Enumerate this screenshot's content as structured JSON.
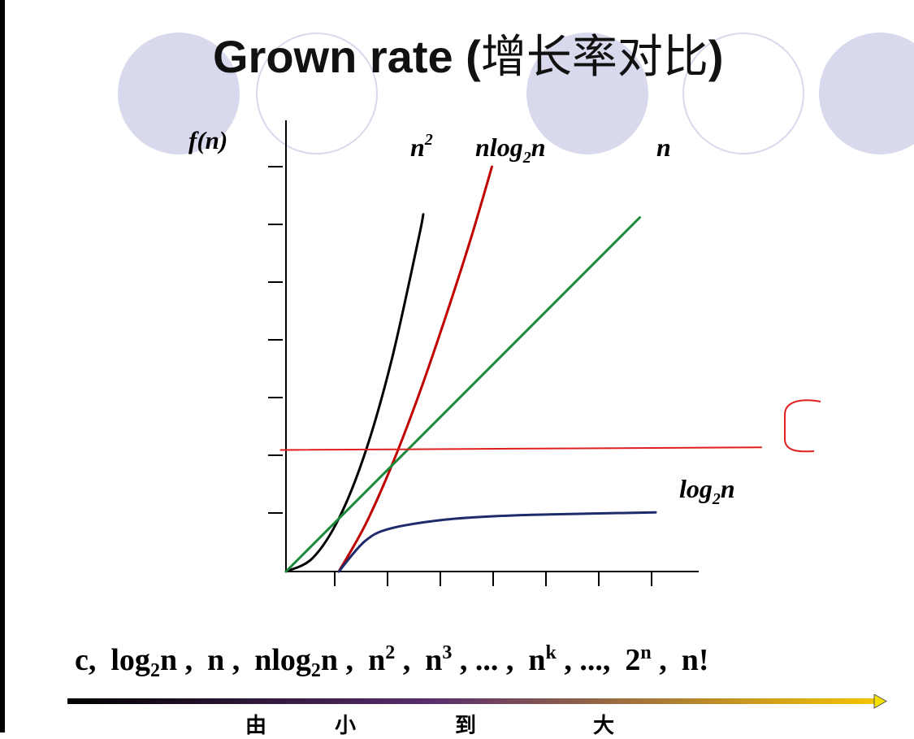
{
  "title": {
    "latin": "Grown rate (",
    "cjk": "增长率对比",
    "close": ")"
  },
  "chart_data": {
    "type": "line",
    "ylabel": "f(n)",
    "xlabel": "",
    "axis_ticks": {
      "x_count": 7,
      "y_count": 7
    },
    "grid": false,
    "series": [
      {
        "name": "n2",
        "label_base": "n",
        "label_sup": "2",
        "color": "#000000",
        "points": [
          [
            0,
            0
          ],
          [
            0.5,
            0.25
          ],
          [
            1,
            1
          ],
          [
            1.5,
            2.25
          ],
          [
            2,
            4
          ],
          [
            2.5,
            6.25
          ],
          [
            2.6,
            6.76
          ]
        ]
      },
      {
        "name": "nlog2n",
        "label_base": "nlog",
        "label_sub": "2",
        "label_tail": "n",
        "color": "#c00000",
        "points": [
          [
            1,
            0
          ],
          [
            1.5,
            0.88
          ],
          [
            2,
            2
          ],
          [
            2.5,
            3.3
          ],
          [
            3,
            4.75
          ],
          [
            3.5,
            6.3
          ],
          [
            3.9,
            7.66
          ]
        ]
      },
      {
        "name": "n",
        "label_base": "n",
        "color": "#1a8a3a",
        "points": [
          [
            0,
            0
          ],
          [
            6.7,
            6.7
          ]
        ]
      },
      {
        "name": "log2n",
        "label_base": "log",
        "label_sub": "2",
        "label_tail": "n",
        "color": "#1f2a6b",
        "points": [
          [
            1,
            0
          ],
          [
            1.5,
            0.58
          ],
          [
            2,
            0.82
          ],
          [
            3,
            0.98
          ],
          [
            4,
            1.05
          ],
          [
            5,
            1.08
          ],
          [
            7,
            1.12
          ]
        ]
      },
      {
        "name": "c",
        "color": "#e02020",
        "points": [
          [
            -0.1,
            2.3
          ],
          [
            9,
            2.35
          ]
        ]
      }
    ],
    "annotation": "C"
  },
  "order": {
    "sequence": [
      {
        "t": "c,"
      },
      {
        "t": "log",
        "sub": "2",
        "tail": "n ,"
      },
      {
        "t": "n ,"
      },
      {
        "t": "nlog",
        "sub": "2",
        "tail": "n ,"
      },
      {
        "t": "n",
        "sup": "2",
        "tail": " ,"
      },
      {
        "t": "n",
        "sup": "3",
        "tail": " , ... ,"
      },
      {
        "t": "n",
        "sup": "k",
        "tail": " , ...,"
      },
      {
        "t": "2",
        "sup": "n",
        "tail": " ,"
      },
      {
        "t": "n!"
      }
    ],
    "words": [
      "由",
      "小",
      "到",
      "大"
    ]
  },
  "colors": {
    "deco": "#d9d9ee",
    "arrow_start": "#000000",
    "arrow_mid": "#5a2d6e",
    "arrow_end": "#f5c400"
  }
}
